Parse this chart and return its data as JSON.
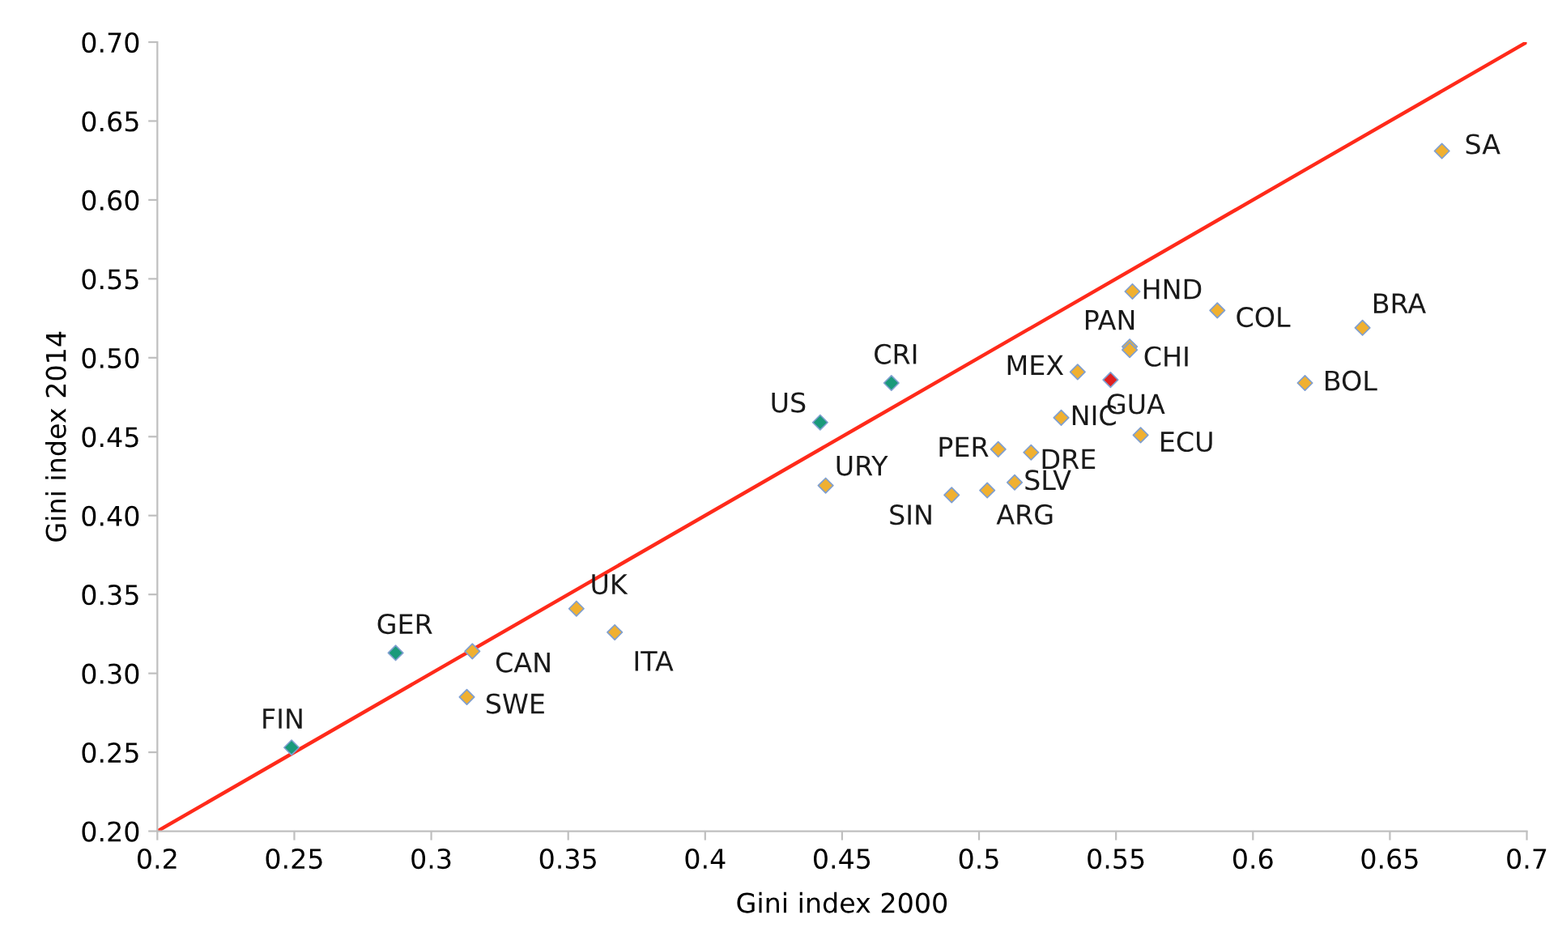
{
  "chart_data": {
    "type": "scatter",
    "xlabel": "Gini index 2000",
    "ylabel": "Gini index 2014",
    "xlim": [
      0.2,
      0.7
    ],
    "ylim": [
      0.2,
      0.7
    ],
    "xticks": [
      0.2,
      0.25,
      0.3,
      0.35,
      0.4,
      0.45,
      0.5,
      0.55,
      0.6,
      0.65,
      0.7
    ],
    "yticks": [
      {
        "value": 0.2,
        "label": "0.20"
      },
      {
        "value": 0.25,
        "label": "0.25"
      },
      {
        "value": 0.3,
        "label": "0.30"
      },
      {
        "value": 0.35,
        "label": "0.35"
      },
      {
        "value": 0.4,
        "label": "0.40"
      },
      {
        "value": 0.45,
        "label": "0.45"
      },
      {
        "value": 0.5,
        "label": "0.50"
      },
      {
        "value": 0.55,
        "label": "0.55"
      },
      {
        "value": 0.6,
        "label": "0.60"
      },
      {
        "value": 0.65,
        "label": "0.65"
      },
      {
        "value": 0.7,
        "label": "0.70"
      }
    ],
    "grid": false,
    "marker": "diamond",
    "series": [
      {
        "type": "line",
        "color": "#ff2a1a",
        "x": [
          0.2,
          0.46,
          0.62,
          0.7
        ],
        "values": [
          0.2,
          0.46,
          0.62,
          0.7
        ],
        "marker": "none"
      },
      {
        "color": "#1a9a7a",
        "x": [
          0.249,
          0.287,
          0.442,
          0.468
        ],
        "values": [
          0.253,
          0.313,
          0.459,
          0.484
        ]
      },
      {
        "color": "#f0b030",
        "x": [
          0.315,
          0.313,
          0.353,
          0.367,
          0.444,
          0.49,
          0.503,
          0.513,
          0.507,
          0.519,
          0.53,
          0.536,
          0.555,
          0.555,
          0.556,
          0.559,
          0.587,
          0.64,
          0.619,
          0.669
        ],
        "values": [
          0.314,
          0.285,
          0.341,
          0.326,
          0.419,
          0.413,
          0.416,
          0.421,
          0.442,
          0.44,
          0.462,
          0.491,
          0.507,
          0.505,
          0.542,
          0.451,
          0.53,
          0.519,
          0.484,
          0.631
        ]
      },
      {
        "color": "#e02020",
        "x": [
          0.548
        ],
        "values": [
          0.486
        ]
      }
    ],
    "annotations": [
      {
        "text": "FIN",
        "x": 0.249,
        "y": 0.253
      },
      {
        "text": "GER",
        "x": 0.287,
        "y": 0.313
      },
      {
        "text": "US",
        "x": 0.442,
        "y": 0.459
      },
      {
        "text": "CRI",
        "x": 0.468,
        "y": 0.484
      },
      {
        "text": "CAN",
        "x": 0.315,
        "y": 0.314
      },
      {
        "text": "SWE",
        "x": 0.313,
        "y": 0.285
      },
      {
        "text": "UK",
        "x": 0.353,
        "y": 0.341
      },
      {
        "text": "ITA",
        "x": 0.367,
        "y": 0.326
      },
      {
        "text": "URY",
        "x": 0.444,
        "y": 0.419
      },
      {
        "text": "SIN",
        "x": 0.49,
        "y": 0.413
      },
      {
        "text": "ARG",
        "x": 0.503,
        "y": 0.416
      },
      {
        "text": "SLV",
        "x": 0.513,
        "y": 0.421
      },
      {
        "text": "PER",
        "x": 0.507,
        "y": 0.442
      },
      {
        "text": "DRE",
        "x": 0.519,
        "y": 0.44
      },
      {
        "text": "NIC",
        "x": 0.53,
        "y": 0.462
      },
      {
        "text": "MEX",
        "x": 0.536,
        "y": 0.491
      },
      {
        "text": "PAN",
        "x": 0.555,
        "y": 0.507
      },
      {
        "text": "CHI",
        "x": 0.555,
        "y": 0.505
      },
      {
        "text": "HND",
        "x": 0.556,
        "y": 0.542
      },
      {
        "text": "ECU",
        "x": 0.559,
        "y": 0.451
      },
      {
        "text": "COL",
        "x": 0.587,
        "y": 0.53
      },
      {
        "text": "BRA",
        "x": 0.64,
        "y": 0.519
      },
      {
        "text": "BOL",
        "x": 0.619,
        "y": 0.484
      },
      {
        "text": "SA",
        "x": 0.669,
        "y": 0.631
      },
      {
        "text": "GUA",
        "x": 0.548,
        "y": 0.486
      }
    ]
  }
}
